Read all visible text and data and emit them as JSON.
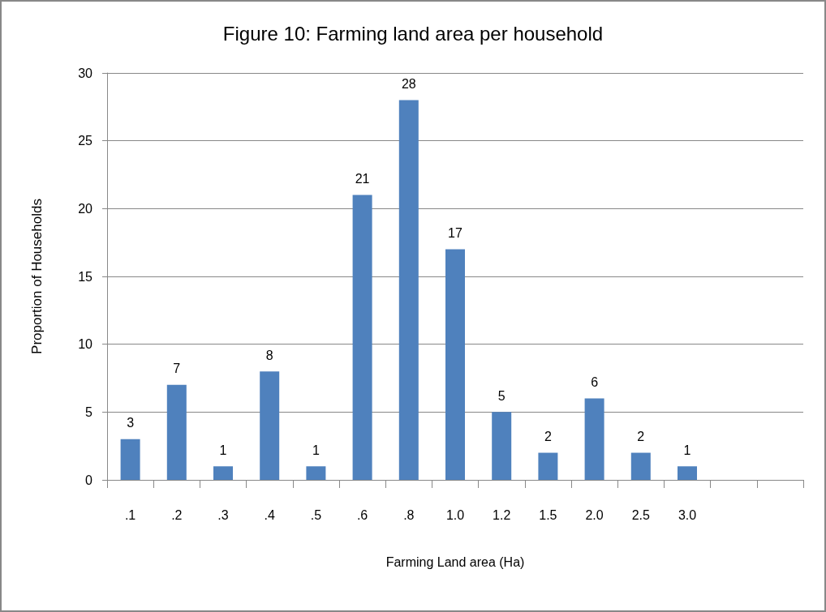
{
  "chart_data": {
    "type": "bar",
    "title": "Figure 10: Farming land area per household",
    "xlabel": "Farming Land area (Ha)",
    "ylabel": "Proportion of Households",
    "categories": [
      ".1",
      ".2",
      ".3",
      ".4",
      ".5",
      ".6",
      ".8",
      "1.0",
      "1.2",
      "1.5",
      "2.0",
      "2.5",
      "3.0",
      null,
      null
    ],
    "values": [
      3,
      7,
      1,
      8,
      1,
      21,
      28,
      17,
      5,
      2,
      6,
      2,
      1,
      null,
      null
    ],
    "color": "#4f81bd",
    "ylim": [
      0,
      30
    ],
    "yticks": [
      0,
      5,
      10,
      15,
      20,
      25,
      30
    ],
    "grid": "y",
    "data_labels": true
  }
}
